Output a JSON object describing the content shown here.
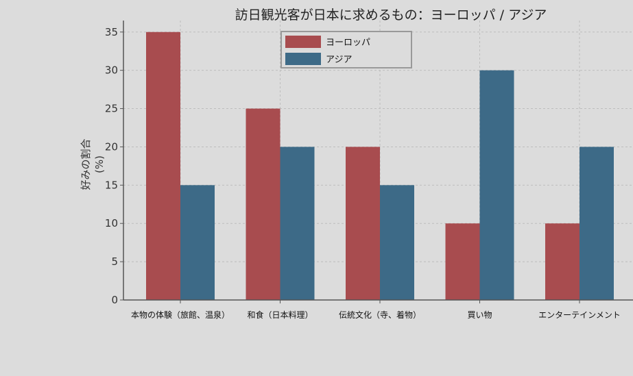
{
  "chart_data": {
    "type": "bar",
    "title": "訪日観光客が日本に求めるもの：ヨーロッパ / アジア",
    "ylabel_line1": "好みの割合",
    "ylabel_line2": "(%)",
    "xlabel": "",
    "categories": [
      "本物の体験（旅館、温泉）",
      "和食（日本料理）",
      "伝統文化（寺、着物）",
      "買い物",
      "エンターテインメント"
    ],
    "series": [
      {
        "name": "ヨーロッパ",
        "color": "#a84c4f",
        "values": [
          35,
          25,
          20,
          10,
          10
        ]
      },
      {
        "name": "アジア",
        "color": "#3d6a87",
        "values": [
          15,
          20,
          15,
          30,
          20
        ]
      }
    ],
    "ylim": [
      0,
      36.5
    ],
    "yticks": [
      0,
      5,
      10,
      15,
      20,
      25,
      30,
      35
    ],
    "grid": true,
    "legend_position": "top-center"
  }
}
